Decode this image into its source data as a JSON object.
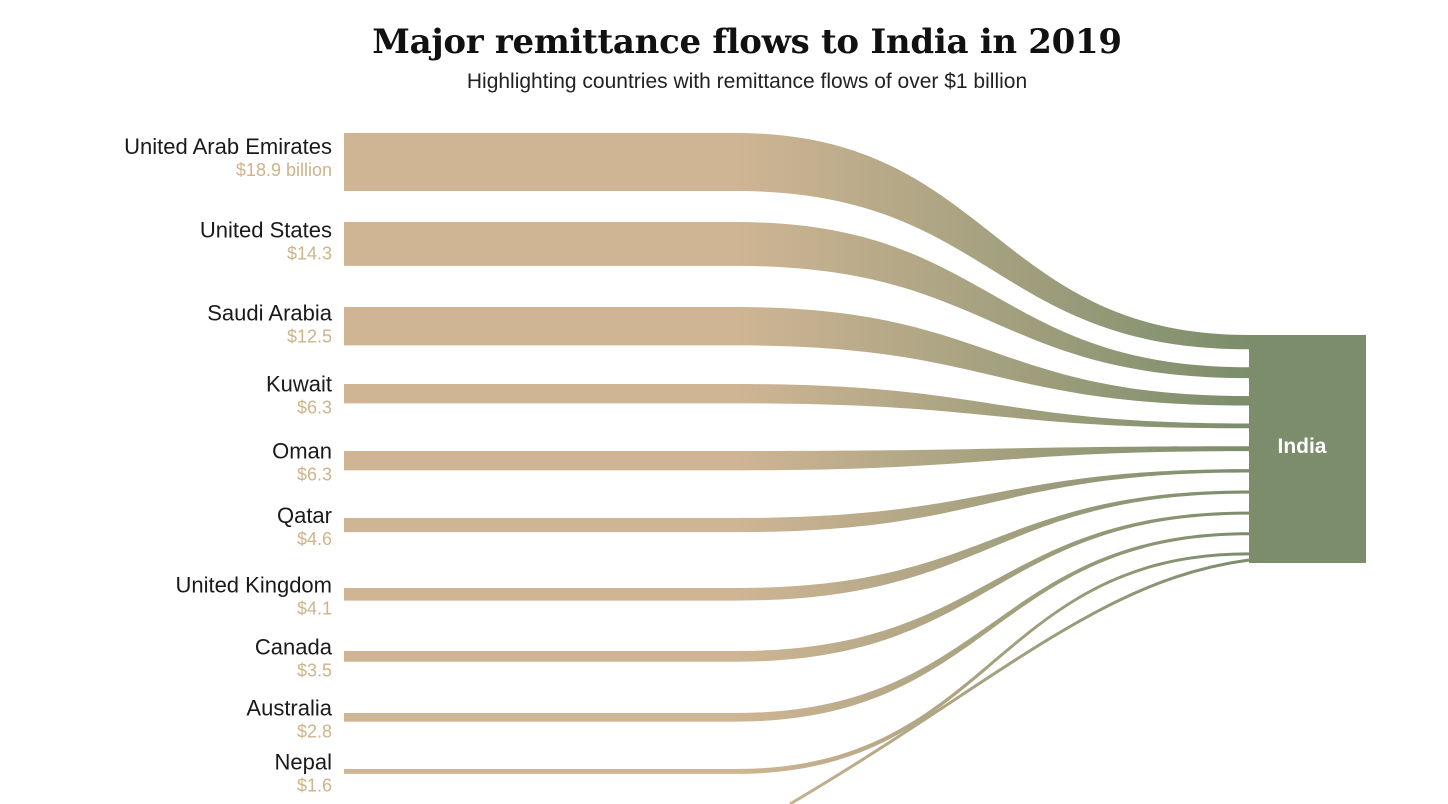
{
  "title": "Major remittance flows to India in 2019",
  "subtitle": "Highlighting countries with remittance flows of over $1 billion",
  "chart_data": {
    "type": "sankey",
    "target": "India",
    "unit": "billion USD",
    "flows": [
      {
        "source": "United Arab Emirates",
        "value": 18.9,
        "label": "$18.9 billion"
      },
      {
        "source": "United States",
        "value": 14.3,
        "label": "$14.3"
      },
      {
        "source": "Saudi Arabia",
        "value": 12.5,
        "label": "$12.5"
      },
      {
        "source": "Kuwait",
        "value": 6.3,
        "label": "$6.3"
      },
      {
        "source": "Oman",
        "value": 6.3,
        "label": "$6.3"
      },
      {
        "source": "Qatar",
        "value": 4.6,
        "label": "$4.6"
      },
      {
        "source": "United Kingdom",
        "value": 4.1,
        "label": "$4.1"
      },
      {
        "source": "Canada",
        "value": 3.5,
        "label": "$3.5"
      },
      {
        "source": "Australia",
        "value": 2.8,
        "label": "$2.8"
      },
      {
        "source": "Nepal",
        "value": 1.6,
        "label": "$1.6"
      }
    ]
  },
  "colors": {
    "source": "#cfb594",
    "target": "#7b8d6b",
    "value_text": "#cdb48b"
  }
}
